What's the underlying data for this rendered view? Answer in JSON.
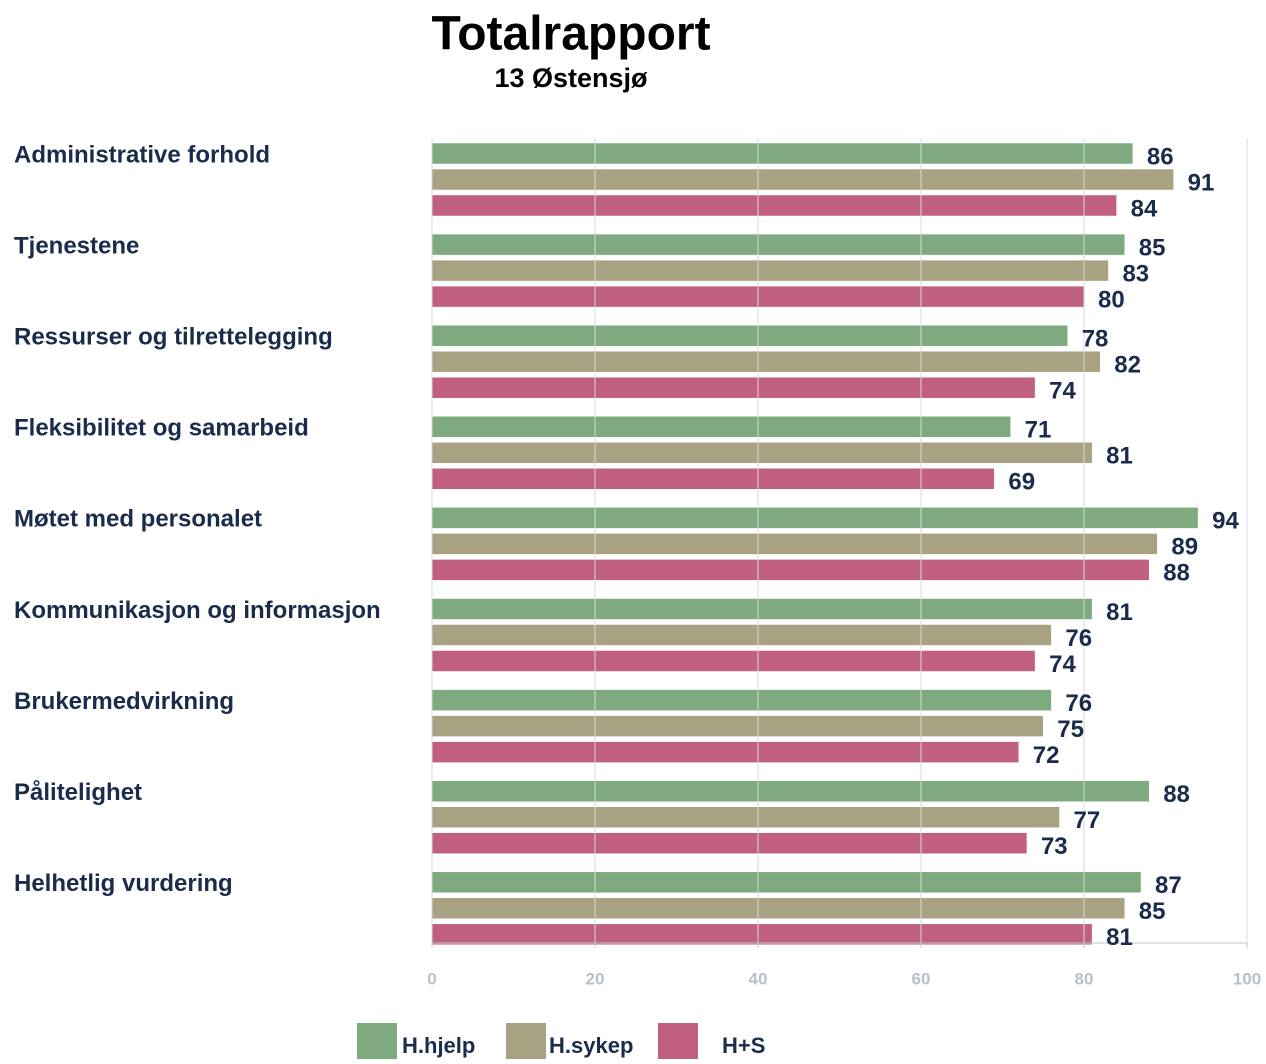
{
  "chart_data": {
    "type": "hbar",
    "title": "Totalrapport",
    "subtitle": "13 Østensjø",
    "categories": [
      "Administrative forhold",
      "Tjenestene",
      "Ressurser og tilrettelegging",
      "Fleksibilitet og samarbeid",
      "Møtet med personalet",
      "Kommunikasjon og informasjon",
      "Brukermedvirkning",
      "Pålitelighet",
      "Helhetlig vurdering"
    ],
    "series": [
      {
        "name": "H.hjelp",
        "color": "#7faa7f",
        "values": [
          86,
          85,
          78,
          71,
          94,
          81,
          76,
          88,
          87
        ]
      },
      {
        "name": "H.sykep",
        "color": "#a8a283",
        "values": [
          91,
          83,
          82,
          81,
          89,
          76,
          75,
          77,
          85
        ]
      },
      {
        "name": "H+S",
        "color": "#c0607e",
        "values": [
          84,
          80,
          74,
          69,
          88,
          74,
          72,
          73,
          81
        ]
      }
    ],
    "xlim": [
      0,
      100
    ],
    "xticks": [
      0,
      20,
      40,
      60,
      80,
      100
    ],
    "grid": true,
    "legend": "bottom"
  }
}
